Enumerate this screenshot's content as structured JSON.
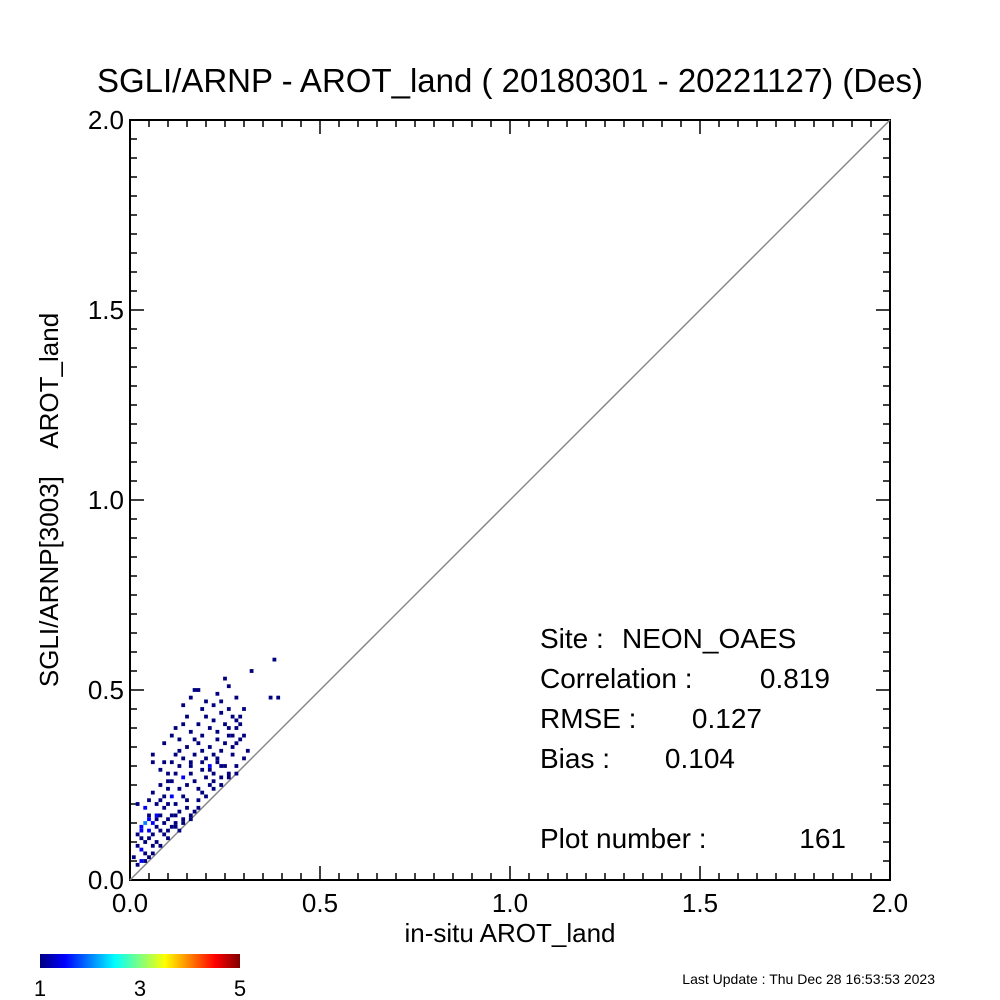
{
  "chart_data": {
    "type": "heatmap",
    "title": "SGLI/ARNP - AROT_land ( 20180301 - 20221127) (Des)",
    "xlabel": "in-situ AROT_land",
    "ylabel": "SGLI/ARNP[3003]    AROT_land",
    "xlim": [
      0.0,
      2.0
    ],
    "ylim": [
      0.0,
      2.0
    ],
    "x_ticks": [
      "0.0",
      "0.5",
      "1.0",
      "1.5",
      "2.0"
    ],
    "y_ticks": [
      "0.0",
      "0.5",
      "1.0",
      "1.5",
      "2.0"
    ],
    "reference_line": "1:1",
    "bin_size": 0.01,
    "colorbar": {
      "min": 1,
      "max": 5,
      "labels": [
        "1",
        "3",
        "5"
      ]
    },
    "stats": {
      "site_label": "Site :",
      "site": "NEON_OAES",
      "correlation_label": "Correlation :",
      "correlation": "0.819",
      "rmse_label": "RMSE :",
      "rmse": "0.127",
      "bias_label": "Bias :",
      "bias": "0.104",
      "plot_number_label": "Plot number :",
      "plot_number": "161"
    },
    "points": [
      [
        0.01,
        0.06,
        1
      ],
      [
        0.02,
        0.09,
        1
      ],
      [
        0.02,
        0.12,
        1
      ],
      [
        0.03,
        0.05,
        2
      ],
      [
        0.03,
        0.08,
        2
      ],
      [
        0.03,
        0.11,
        1
      ],
      [
        0.03,
        0.14,
        2
      ],
      [
        0.04,
        0.15,
        3
      ],
      [
        0.04,
        0.1,
        1
      ],
      [
        0.04,
        0.07,
        1
      ],
      [
        0.05,
        0.13,
        2
      ],
      [
        0.05,
        0.17,
        1
      ],
      [
        0.05,
        0.11,
        1
      ],
      [
        0.05,
        0.06,
        1
      ],
      [
        0.06,
        0.15,
        2
      ],
      [
        0.06,
        0.12,
        1
      ],
      [
        0.06,
        0.09,
        1
      ],
      [
        0.07,
        0.16,
        1
      ],
      [
        0.07,
        0.14,
        1
      ],
      [
        0.07,
        0.1,
        1
      ],
      [
        0.08,
        0.13,
        1
      ],
      [
        0.08,
        0.17,
        1
      ],
      [
        0.09,
        0.15,
        1
      ],
      [
        0.09,
        0.12,
        1
      ],
      [
        0.1,
        0.11,
        1
      ],
      [
        0.11,
        0.14,
        1
      ],
      [
        0.11,
        0.17,
        1
      ],
      [
        0.12,
        0.15,
        1
      ],
      [
        0.13,
        0.18,
        1
      ],
      [
        0.13,
        0.13,
        1
      ],
      [
        0.14,
        0.16,
        1
      ],
      [
        0.15,
        0.19,
        1
      ],
      [
        0.16,
        0.17,
        1
      ],
      [
        0.17,
        0.18,
        1
      ],
      [
        0.02,
        0.2,
        1
      ],
      [
        0.04,
        0.19,
        2
      ],
      [
        0.05,
        0.21,
        1
      ],
      [
        0.06,
        0.23,
        1
      ],
      [
        0.07,
        0.2,
        1
      ],
      [
        0.08,
        0.25,
        1
      ],
      [
        0.09,
        0.22,
        1
      ],
      [
        0.1,
        0.24,
        1
      ],
      [
        0.1,
        0.2,
        1
      ],
      [
        0.11,
        0.22,
        2
      ],
      [
        0.12,
        0.2,
        1
      ],
      [
        0.13,
        0.24,
        1
      ],
      [
        0.14,
        0.27,
        2
      ],
      [
        0.14,
        0.22,
        1
      ],
      [
        0.15,
        0.25,
        1
      ],
      [
        0.16,
        0.28,
        1
      ],
      [
        0.17,
        0.26,
        1
      ],
      [
        0.18,
        0.24,
        1
      ],
      [
        0.19,
        0.29,
        1
      ],
      [
        0.2,
        0.27,
        1
      ],
      [
        0.21,
        0.3,
        2
      ],
      [
        0.22,
        0.28,
        1
      ],
      [
        0.23,
        0.31,
        1
      ],
      [
        0.24,
        0.3,
        1
      ],
      [
        0.26,
        0.28,
        1
      ],
      [
        0.28,
        0.28,
        1
      ],
      [
        0.06,
        0.31,
        1
      ],
      [
        0.06,
        0.33,
        1
      ],
      [
        0.08,
        0.29,
        1
      ],
      [
        0.09,
        0.31,
        1
      ],
      [
        0.1,
        0.28,
        1
      ],
      [
        0.12,
        0.33,
        1
      ],
      [
        0.13,
        0.3,
        1
      ],
      [
        0.14,
        0.32,
        1
      ],
      [
        0.15,
        0.35,
        1
      ],
      [
        0.16,
        0.31,
        1
      ],
      [
        0.17,
        0.33,
        1
      ],
      [
        0.18,
        0.36,
        1
      ],
      [
        0.19,
        0.34,
        1
      ],
      [
        0.2,
        0.32,
        1
      ],
      [
        0.21,
        0.35,
        1
      ],
      [
        0.22,
        0.33,
        1
      ],
      [
        0.23,
        0.37,
        1
      ],
      [
        0.24,
        0.34,
        1
      ],
      [
        0.25,
        0.36,
        1
      ],
      [
        0.26,
        0.38,
        1
      ],
      [
        0.27,
        0.35,
        1
      ],
      [
        0.28,
        0.4,
        1
      ],
      [
        0.29,
        0.37,
        1
      ],
      [
        0.3,
        0.38,
        1
      ],
      [
        0.09,
        0.36,
        1
      ],
      [
        0.11,
        0.38,
        1
      ],
      [
        0.12,
        0.4,
        1
      ],
      [
        0.13,
        0.37,
        1
      ],
      [
        0.14,
        0.41,
        1
      ],
      [
        0.16,
        0.39,
        1
      ],
      [
        0.18,
        0.41,
        1
      ],
      [
        0.2,
        0.43,
        1
      ],
      [
        0.22,
        0.42,
        1
      ],
      [
        0.24,
        0.44,
        1
      ],
      [
        0.25,
        0.41,
        1
      ],
      [
        0.26,
        0.4,
        1
      ],
      [
        0.27,
        0.43,
        1
      ],
      [
        0.28,
        0.42,
        1
      ],
      [
        0.29,
        0.41,
        1
      ],
      [
        0.3,
        0.45,
        1
      ],
      [
        0.14,
        0.46,
        1
      ],
      [
        0.16,
        0.48,
        1
      ],
      [
        0.17,
        0.5,
        1
      ],
      [
        0.18,
        0.5,
        1
      ],
      [
        0.2,
        0.47,
        1
      ],
      [
        0.23,
        0.49,
        1
      ],
      [
        0.25,
        0.53,
        1
      ],
      [
        0.26,
        0.51,
        1
      ],
      [
        0.28,
        0.48,
        1
      ],
      [
        0.32,
        0.55,
        1
      ],
      [
        0.37,
        0.48,
        1
      ],
      [
        0.38,
        0.58,
        1
      ],
      [
        0.39,
        0.48,
        1
      ],
      [
        0.05,
        0.16,
        2
      ],
      [
        0.03,
        0.13,
        2
      ],
      [
        0.07,
        0.17,
        2
      ],
      [
        0.09,
        0.19,
        1
      ],
      [
        0.1,
        0.16,
        1
      ],
      [
        0.12,
        0.17,
        1
      ],
      [
        0.15,
        0.21,
        1
      ],
      [
        0.18,
        0.21,
        1
      ],
      [
        0.19,
        0.23,
        1
      ],
      [
        0.21,
        0.25,
        1
      ],
      [
        0.22,
        0.26,
        1
      ],
      [
        0.24,
        0.27,
        1
      ],
      [
        0.08,
        0.21,
        1
      ],
      [
        0.11,
        0.26,
        1
      ],
      [
        0.12,
        0.28,
        1
      ],
      [
        0.16,
        0.3,
        1
      ],
      [
        0.19,
        0.31,
        1
      ],
      [
        0.21,
        0.29,
        1
      ],
      [
        0.23,
        0.32,
        1
      ],
      [
        0.25,
        0.3,
        1
      ],
      [
        0.27,
        0.33,
        1
      ],
      [
        0.28,
        0.36,
        1
      ],
      [
        0.11,
        0.31,
        1
      ],
      [
        0.13,
        0.34,
        1
      ],
      [
        0.17,
        0.37,
        1
      ],
      [
        0.19,
        0.38,
        1
      ],
      [
        0.21,
        0.4,
        1
      ],
      [
        0.23,
        0.39,
        1
      ],
      [
        0.26,
        0.45,
        1
      ],
      [
        0.27,
        0.38,
        1
      ],
      [
        0.29,
        0.43,
        1
      ],
      [
        0.15,
        0.43,
        1
      ],
      [
        0.19,
        0.45,
        1
      ],
      [
        0.22,
        0.46,
        1
      ],
      [
        0.24,
        0.47,
        1
      ],
      [
        0.02,
        0.04,
        1
      ],
      [
        0.04,
        0.05,
        1
      ],
      [
        0.06,
        0.07,
        1
      ],
      [
        0.08,
        0.09,
        1
      ],
      [
        0.1,
        0.13,
        1
      ],
      [
        0.12,
        0.14,
        1
      ],
      [
        0.14,
        0.15,
        1
      ],
      [
        0.16,
        0.16,
        1
      ],
      [
        0.18,
        0.19,
        1
      ],
      [
        0.2,
        0.22,
        1
      ],
      [
        0.22,
        0.24,
        1
      ],
      [
        0.24,
        0.25,
        1
      ],
      [
        0.26,
        0.27,
        1
      ],
      [
        0.28,
        0.3,
        1
      ],
      [
        0.3,
        0.32,
        1
      ],
      [
        0.31,
        0.34,
        1
      ],
      [
        0.1,
        0.26,
        1
      ]
    ]
  },
  "footer": {
    "last_update": "Last Update : Thu Dec 28 16:53:53 2023"
  }
}
